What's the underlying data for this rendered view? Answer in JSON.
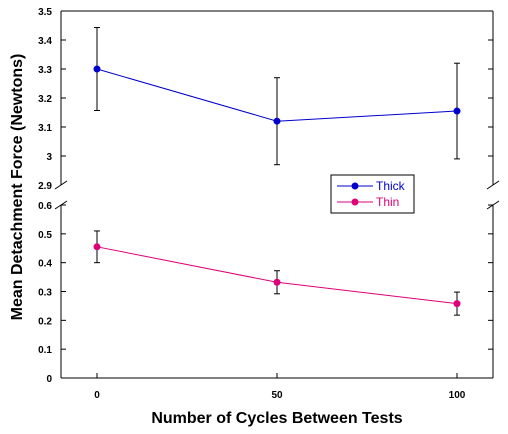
{
  "chart_data": {
    "type": "line",
    "title": "",
    "xlabel": "Number of Cycles Between Tests",
    "ylabel": "Mean Detachment Force (Newtons)",
    "x": [
      0,
      50,
      100
    ],
    "x_tick_labels": [
      "0",
      "50",
      "100"
    ],
    "xlim": [
      -10,
      110
    ],
    "y_axis_break": true,
    "upper_ylim": [
      2.9,
      3.5
    ],
    "upper_y_ticks": [
      "2.9",
      "3",
      "3.1",
      "3.2",
      "3.3",
      "3.4",
      "3.5"
    ],
    "lower_ylim": [
      0,
      0.6
    ],
    "lower_y_ticks": [
      "0",
      "0.1",
      "0.2",
      "0.3",
      "0.4",
      "0.5",
      "0.6"
    ],
    "grid": false,
    "legend_placement": "center-right",
    "series": [
      {
        "name": "Thick",
        "color": "#0000cc",
        "panel": "upper",
        "values": [
          3.3,
          3.12,
          3.155
        ],
        "error": [
          0.143,
          0.15,
          0.165
        ]
      },
      {
        "name": "Thin",
        "color": "#dd0077",
        "panel": "lower",
        "values": [
          0.455,
          0.332,
          0.258
        ],
        "error": [
          0.055,
          0.04,
          0.04
        ]
      }
    ]
  }
}
